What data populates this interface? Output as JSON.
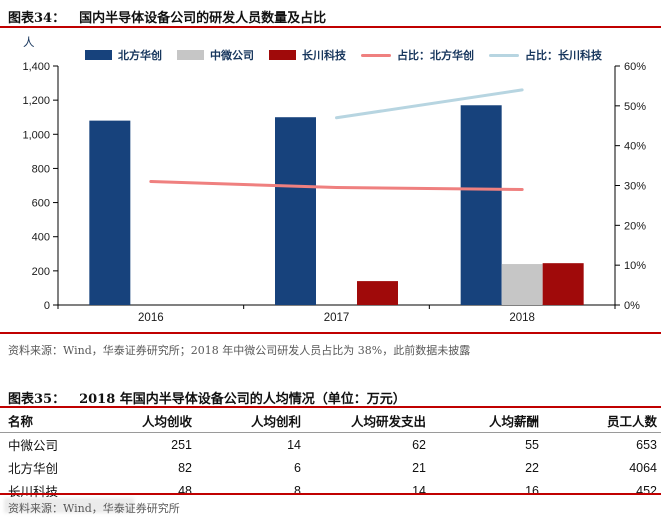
{
  "page": {
    "accent_red": "#C00000",
    "background": "#ffffff"
  },
  "fig34": {
    "label": "图表34：",
    "title": "国内半导体设备公司的研发人员数量及占比",
    "unit_label": "人",
    "note": "资料来源：Wind，华泰证券研究所；2018 年中微公司研发人员占比为 38%，此前数据未披露"
  },
  "chart_data": {
    "type": "bar",
    "subtype": "bar+line-dual-axis",
    "title": "国内半导体设备公司的研发人员数量及占比",
    "categories": [
      "2016",
      "2017",
      "2018"
    ],
    "series": [
      {
        "kind": "bar",
        "name": "北方华创",
        "color": "#17427C",
        "axis": "left",
        "values": [
          1080,
          1100,
          1170
        ]
      },
      {
        "kind": "bar",
        "name": "中微公司",
        "color": "#C6C6C6",
        "axis": "left",
        "values": [
          null,
          null,
          240
        ]
      },
      {
        "kind": "bar",
        "name": "长川科技",
        "color": "#A00A0A",
        "axis": "left",
        "values": [
          null,
          140,
          245
        ]
      },
      {
        "kind": "line",
        "name": "占比：北方华创",
        "color": "#EF807F",
        "axis": "right",
        "values": [
          31,
          29.5,
          29
        ]
      },
      {
        "kind": "line",
        "name": "占比：长川科技",
        "color": "#B7D5E1",
        "axis": "right",
        "values": [
          null,
          47,
          54
        ]
      }
    ],
    "left_axis": {
      "label": "人",
      "min": 0,
      "max": 1400,
      "step": 200,
      "ticks": [
        "1,400",
        "1,200",
        "1,000",
        "800",
        "600",
        "400",
        "200",
        "0"
      ]
    },
    "right_axis": {
      "min": 0,
      "max": 60,
      "step": 10,
      "ticks": [
        "60%",
        "50%",
        "40%",
        "30%",
        "20%",
        "10%",
        "0%"
      ]
    },
    "grid": false,
    "legend_position": "top"
  },
  "fig35": {
    "label": "图表35：",
    "title": "2018 年国内半导体设备公司的人均情况（单位：万元）",
    "source": "资料来源：Wind，华泰证券研究所",
    "table": {
      "headers": [
        "名称",
        "人均创收",
        "人均创利",
        "人均研发支出",
        "人均薪酬",
        "员工人数"
      ],
      "rows": [
        {
          "name": "中微公司",
          "values": [
            "251",
            "14",
            "62",
            "55",
            "653"
          ]
        },
        {
          "name": "北方华创",
          "values": [
            "82",
            "6",
            "21",
            "22",
            "4064"
          ]
        },
        {
          "name": "长川科技",
          "values": [
            "48",
            "8",
            "14",
            "16",
            "452"
          ]
        }
      ]
    }
  }
}
